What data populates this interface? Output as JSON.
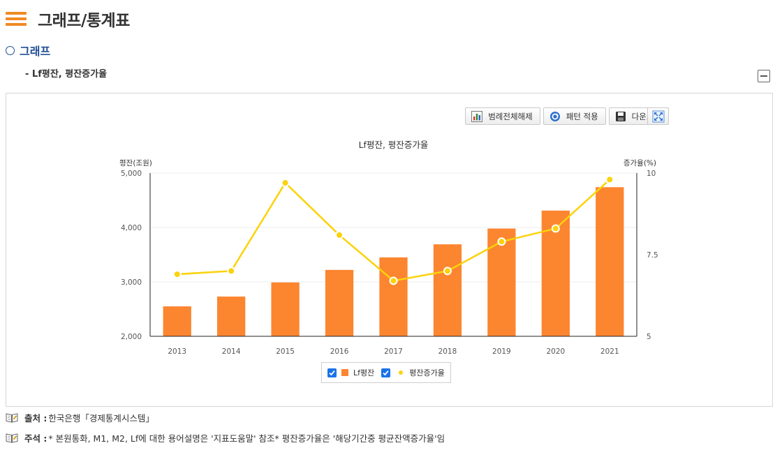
{
  "page": {
    "title": "그래프/통계표",
    "section": "그래프",
    "subtitle": "- Lf평잔, 평잔증가율"
  },
  "toolbar": {
    "legend_all_off": "범례전체해제",
    "apply_pattern": "패턴 적용",
    "download": "다운로드"
  },
  "colors": {
    "accent": "#f08a24",
    "section_blue": "#1f4e96",
    "bar": "#fc8530",
    "line": "#fcd20a",
    "checkbox": "#1a73e8"
  },
  "footnotes": {
    "source_label": "출처 :",
    "source_text": "한국은행「경제통계시스템」",
    "note_label": "주석 :",
    "note_text": "* 본원통화, M1, M2, Lf에 대한 용어설명은 '지표도움말' 참조* 평잔증가율은 '해당기간중 평균잔액증가율'임"
  },
  "chart_data": {
    "type": "bar",
    "title": "Lf평잔, 평잔증가율",
    "ylabel": "평잔(조원)",
    "y2label": "증가율(%)",
    "categories": [
      "2013",
      "2014",
      "2015",
      "2016",
      "2017",
      "2018",
      "2019",
      "2020",
      "2021"
    ],
    "ylim": [
      2000,
      5000
    ],
    "y_ticks": [
      "2,000",
      "3,000",
      "4,000",
      "5,000"
    ],
    "y2lim": [
      5,
      10
    ],
    "y2_ticks": [
      "5",
      "7.5",
      "10"
    ],
    "grid": true,
    "legend_position": "bottom",
    "series": [
      {
        "name": "Lf평잔",
        "type": "bar",
        "axis": "left",
        "values": [
          2550,
          2730,
          2990,
          3220,
          3450,
          3690,
          3980,
          4310,
          4740
        ]
      },
      {
        "name": "평잔증가율",
        "type": "line",
        "axis": "right",
        "values": [
          6.9,
          7.0,
          9.7,
          8.1,
          6.7,
          7.0,
          7.9,
          8.3,
          9.8
        ]
      }
    ]
  }
}
